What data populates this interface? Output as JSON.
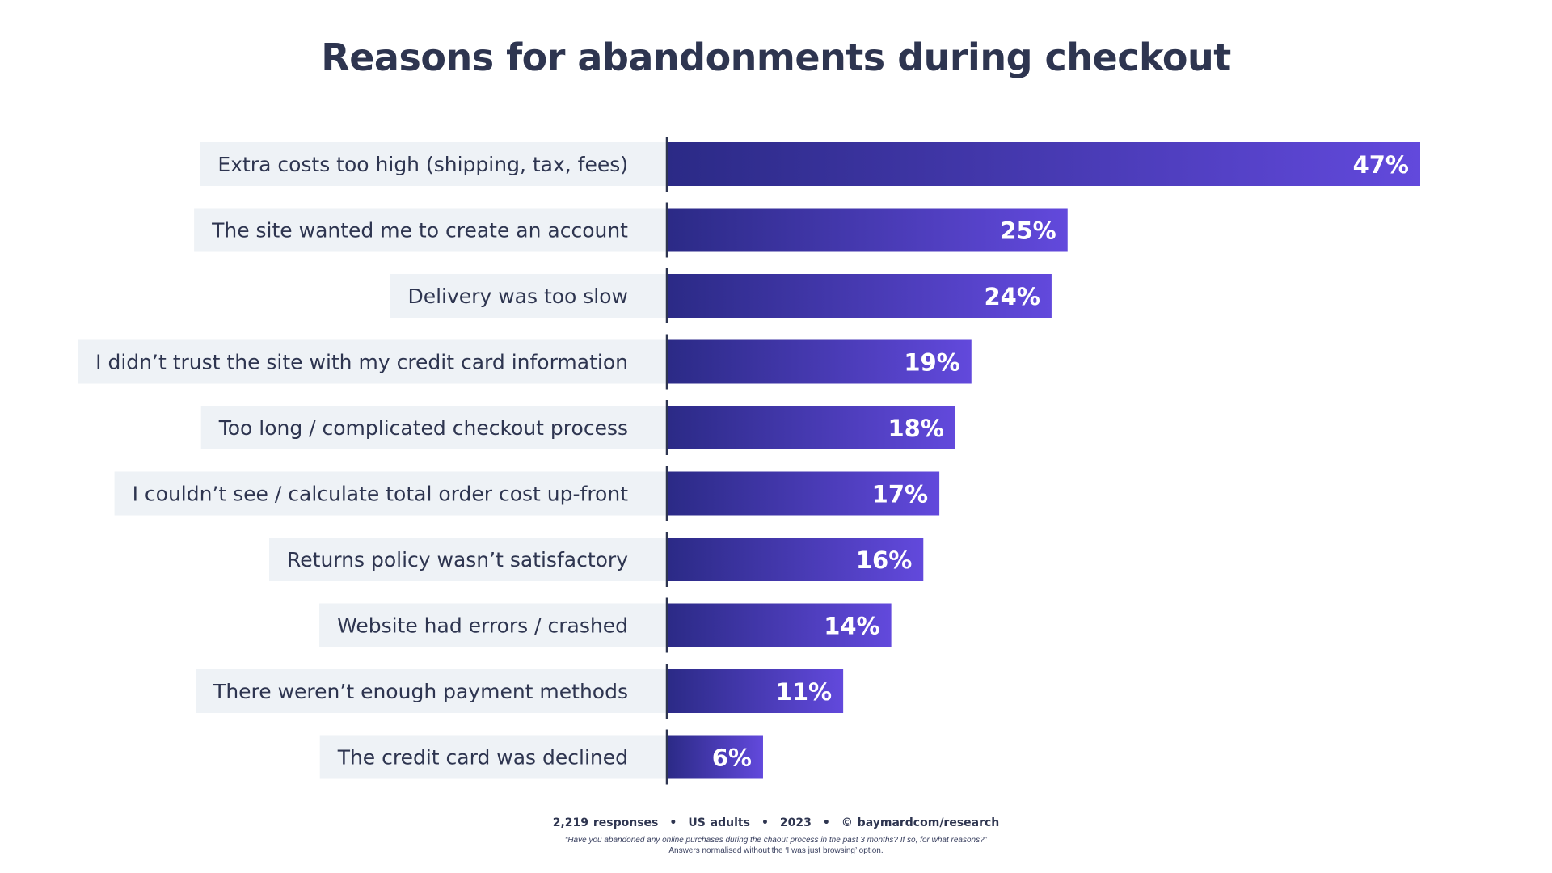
{
  "chart_data": {
    "type": "bar",
    "orientation": "horizontal",
    "title": "Reasons for abandonments during checkout",
    "categories": [
      "Extra costs too high (shipping, tax, fees)",
      "The site wanted me to create an account",
      "Delivery was too slow",
      "I didn’t trust the site with my credit card information",
      "Too long / complicated checkout process",
      "I couldn’t see / calculate total order cost up-front",
      "Returns policy wasn’t satisfactory",
      "Website had errors / crashed",
      "There weren’t enough payment methods",
      "The credit card was declined"
    ],
    "values": [
      47,
      25,
      24,
      19,
      18,
      17,
      16,
      14,
      11,
      6
    ],
    "value_labels": [
      "47%",
      "25%",
      "24%",
      "19%",
      "18%",
      "17%",
      "16%",
      "14%",
      "11%",
      "6%"
    ],
    "unit": "%",
    "colors": {
      "bar_start": "#2b2a86",
      "bar_end": "#6249dc",
      "label_background": "#eef2f6",
      "axis": "#2e3550",
      "value_text": "#ffffff",
      "category_text": "#2e3550"
    }
  },
  "footer": {
    "responses": "2,219 responses",
    "audience": "US adults",
    "year": "2023",
    "source": "© baymardcom/research",
    "separator": "•",
    "question": "“Have you abandoned any online purchases during the chaout process in the past 3 months? If so, for what reasons?”",
    "note": "Answers normalised without the ‘I was just browsing’ option."
  }
}
